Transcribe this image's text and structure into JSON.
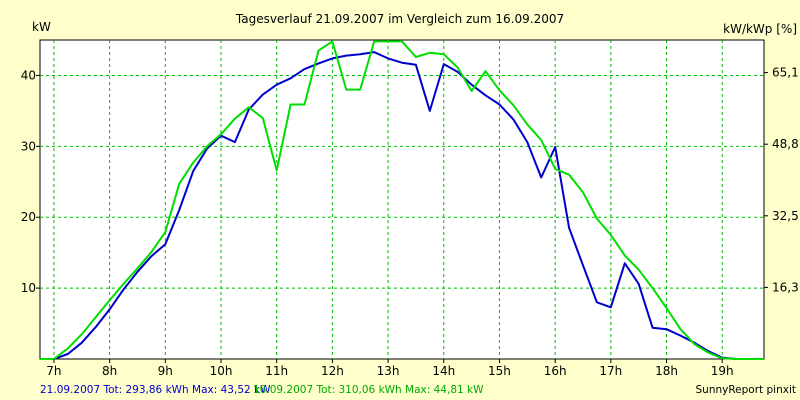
{
  "chart_data": {
    "type": "line",
    "title": "Tagesverlauf 21.09.2007 im Vergleich zum 16.09.2007",
    "ylabel_left": "kW",
    "ylabel_right": "kW/kWp [%]",
    "xlim": [
      6.75,
      19.75
    ],
    "ylim": [
      0,
      45
    ],
    "grid": true,
    "x_ticks": [
      {
        "value": 7,
        "label": "7h"
      },
      {
        "value": 8,
        "label": "8h"
      },
      {
        "value": 9,
        "label": "9h"
      },
      {
        "value": 10,
        "label": "10h"
      },
      {
        "value": 11,
        "label": "11h"
      },
      {
        "value": 12,
        "label": "12h"
      },
      {
        "value": 13,
        "label": "13h"
      },
      {
        "value": 14,
        "label": "14h"
      },
      {
        "value": 15,
        "label": "15h"
      },
      {
        "value": 16,
        "label": "16h"
      },
      {
        "value": 17,
        "label": "17h"
      },
      {
        "value": 18,
        "label": "18h"
      },
      {
        "value": 19,
        "label": "19h"
      }
    ],
    "y_ticks_left": [
      {
        "value": 10,
        "label": "10"
      },
      {
        "value": 20,
        "label": "20"
      },
      {
        "value": 30,
        "label": "30"
      },
      {
        "value": 40,
        "label": "40"
      }
    ],
    "y_ticks_right": [
      {
        "value": 10.1,
        "label": "16,3"
      },
      {
        "value": 20.2,
        "label": "32,5"
      },
      {
        "value": 30.3,
        "label": "48,8"
      },
      {
        "value": 40.4,
        "label": "65,1"
      }
    ],
    "series": [
      {
        "name": "21.09.2007 Tot: 293,86 kWh Max: 43,52 kW",
        "color": "#0000cc",
        "x": [
          6.75,
          7.0,
          7.25,
          7.5,
          7.75,
          8.0,
          8.25,
          8.5,
          8.75,
          9.0,
          9.25,
          9.5,
          9.75,
          10.0,
          10.25,
          10.5,
          10.75,
          11.0,
          11.25,
          11.5,
          11.75,
          12.0,
          12.25,
          12.5,
          12.75,
          13.0,
          13.25,
          13.5,
          13.75,
          14.0,
          14.25,
          14.5,
          14.75,
          15.0,
          15.25,
          15.5,
          15.75,
          16.0,
          16.25,
          16.5,
          16.75,
          17.0,
          17.25,
          17.5,
          17.75,
          18.0,
          18.25,
          18.5,
          18.75,
          19.0,
          19.25,
          19.5,
          19.75
        ],
        "values": [
          0,
          0,
          0.7,
          2.3,
          4.5,
          7.0,
          9.8,
          12.3,
          14.5,
          16.2,
          21.0,
          26.5,
          29.7,
          31.5,
          30.6,
          35.2,
          37.3,
          38.7,
          39.6,
          40.9,
          41.7,
          42.4,
          42.8,
          43.0,
          43.3,
          42.4,
          41.8,
          41.5,
          35.0,
          41.6,
          40.5,
          38.7,
          37.2,
          35.9,
          33.8,
          30.6,
          25.6,
          29.9,
          18.5,
          13.2,
          8.0,
          7.3,
          13.5,
          10.6,
          4.4,
          4.2,
          3.3,
          2.3,
          1.1,
          0.2,
          0,
          0,
          0
        ]
      },
      {
        "name": "16.09.2007 Tot: 310,06 kWh Max: 44,81 kW",
        "color": "#00dd00",
        "x": [
          6.75,
          7.0,
          7.25,
          7.5,
          7.75,
          8.0,
          8.25,
          8.5,
          8.75,
          9.0,
          9.25,
          9.5,
          9.75,
          10.0,
          10.25,
          10.5,
          10.75,
          11.0,
          11.25,
          11.5,
          11.75,
          12.0,
          12.25,
          12.5,
          12.75,
          13.0,
          13.25,
          13.5,
          13.75,
          14.0,
          14.25,
          14.5,
          14.75,
          15.0,
          15.25,
          15.5,
          15.75,
          16.0,
          16.25,
          16.5,
          16.75,
          17.0,
          17.25,
          17.5,
          17.75,
          18.0,
          18.25,
          18.5,
          18.75,
          19.0,
          19.25,
          19.5,
          19.75
        ],
        "values": [
          0,
          0,
          1.5,
          3.5,
          5.9,
          8.3,
          10.6,
          12.8,
          15.1,
          17.9,
          24.7,
          27.7,
          30.0,
          31.7,
          33.9,
          35.5,
          34.0,
          26.6,
          35.9,
          35.9,
          43.5,
          44.8,
          38.0,
          38.0,
          44.8,
          44.8,
          44.8,
          42.6,
          43.2,
          43.0,
          41.1,
          37.8,
          40.6,
          37.9,
          35.8,
          33.1,
          30.9,
          26.8,
          26.0,
          23.5,
          19.8,
          17.5,
          14.6,
          12.6,
          10.0,
          7.2,
          4.2,
          2.1,
          0.9,
          0.1,
          0,
          0,
          0
        ]
      }
    ],
    "footer_credit": "SunnyReport pinxit"
  }
}
